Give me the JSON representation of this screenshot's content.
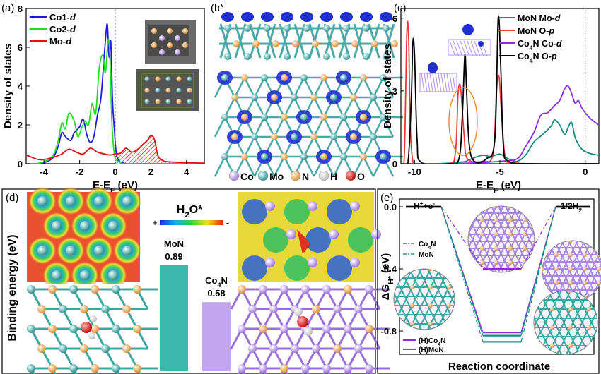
{
  "panels": {
    "a": "(a)",
    "b": "(b)",
    "c": "(c)",
    "d": "(d)",
    "e": "(e)"
  },
  "chart_data": [
    {
      "id": "a",
      "type": "line",
      "xlabel": "E-E_F (eV)",
      "ylabel": "Density of states",
      "xlim": [
        -5,
        5
      ],
      "ylim": [
        0,
        8
      ],
      "xticks": [
        -4,
        -2,
        0,
        2,
        4
      ],
      "yticks": [
        0,
        2,
        4,
        6,
        8
      ],
      "legend_placement": "top-left",
      "series": [
        {
          "name": "Co1-d",
          "color": "#1a1ae6",
          "x": [
            -5,
            -4.5,
            -4,
            -3.5,
            -3.2,
            -3,
            -2.8,
            -2.5,
            -2.3,
            -2,
            -1.8,
            -1.6,
            -1.4,
            -1.2,
            -1.0,
            -0.8,
            -0.6,
            -0.45,
            -0.35,
            -0.25,
            -0.15,
            -0.05,
            0.05,
            0.2,
            0.4,
            0.6,
            0.8,
            1.0,
            1.5,
            2,
            2.5,
            3,
            3.5,
            4,
            5
          ],
          "y": [
            0,
            0,
            0.05,
            0.3,
            0.9,
            1.6,
            1.4,
            1.2,
            1.6,
            1.9,
            2.3,
            1.5,
            1.1,
            1.4,
            2.5,
            3.4,
            5.8,
            7.2,
            5.5,
            6.3,
            3.2,
            1.8,
            0.6,
            0.15,
            0.05,
            0,
            0,
            0,
            0,
            0,
            0,
            0,
            0,
            0,
            0
          ]
        },
        {
          "name": "Co2-d",
          "color": "#22dd22",
          "x": [
            -5,
            -4.5,
            -4,
            -3.5,
            -3.2,
            -3,
            -2.8,
            -2.6,
            -2.3,
            -2.1,
            -1.9,
            -1.7,
            -1.5,
            -1.3,
            -1.1,
            -0.9,
            -0.7,
            -0.55,
            -0.4,
            -0.3,
            -0.2,
            -0.1,
            0,
            0.2,
            0.4,
            0.7,
            1,
            1.5,
            2,
            2.5,
            3,
            3.5,
            4,
            5
          ],
          "y": [
            0,
            0,
            0.1,
            0.4,
            1.2,
            2.1,
            1.8,
            2.6,
            2.2,
            1.4,
            1.8,
            2.2,
            2.0,
            3.1,
            2.6,
            4.9,
            5.6,
            4.7,
            6.4,
            5.5,
            2.4,
            0.9,
            0.3,
            0.1,
            0,
            0,
            0,
            0,
            0,
            0,
            0,
            0,
            0,
            0
          ]
        },
        {
          "name": "Mo-d",
          "color": "#e01010",
          "x": [
            -5,
            -4.6,
            -4.2,
            -3.8,
            -3.4,
            -3.0,
            -2.6,
            -2.2,
            -1.8,
            -1.4,
            -1.0,
            -0.6,
            -0.3,
            0,
            0.3,
            0.6,
            0.9,
            1.2,
            1.5,
            1.8,
            2.0,
            2.2,
            2.4,
            2.7,
            3.0,
            3.4,
            3.8,
            4.2,
            4.6,
            5
          ],
          "y": [
            0.45,
            0.3,
            0.2,
            0.25,
            0.35,
            0.5,
            0.75,
            0.6,
            0.5,
            0.8,
            0.6,
            0.5,
            0.45,
            0.5,
            0.55,
            0.8,
            0.6,
            0.7,
            0.95,
            1.2,
            1.45,
            1.25,
            0.4,
            0.15,
            0.1,
            0.08,
            0.06,
            0.05,
            0.04,
            0.03
          ]
        }
      ]
    },
    {
      "id": "c",
      "type": "line",
      "xlabel": "E-E_F (eV)",
      "ylabel": "Density of states",
      "xlim": [
        -10.8,
        0.8
      ],
      "ylim": [
        0,
        6.4
      ],
      "xticks": [
        -10,
        -5,
        0
      ],
      "yticks": [
        0,
        3,
        6
      ],
      "legend_placement": "top-right",
      "series": [
        {
          "name": "MoN Mo-d",
          "color": "#1a8a80",
          "x": [
            -10.8,
            -10,
            -9,
            -8,
            -7.5,
            -7,
            -6.5,
            -6,
            -5.5,
            -5,
            -4.5,
            -4,
            -3.5,
            -3,
            -2.5,
            -2,
            -1.8,
            -1.5,
            -1.2,
            -1,
            -0.8,
            -0.6,
            -0.4,
            -0.2,
            0,
            0.4,
            0.8
          ],
          "y": [
            0,
            0,
            0,
            0.02,
            0.05,
            0.1,
            0.25,
            0.35,
            0.3,
            0.4,
            0.2,
            0.1,
            0.35,
            0.9,
            1.2,
            1.55,
            1.8,
            1.6,
            1.2,
            1.5,
            1.7,
            1.1,
            0.8,
            0.6,
            0.5,
            0.4,
            0.35
          ]
        },
        {
          "name": "MoN O-p",
          "color": "#e83a3a",
          "x": [
            -10.8,
            -10.6,
            -10.45,
            -10.35,
            -10.25,
            -10.1,
            -9.9,
            -8,
            -7.6,
            -7.45,
            -7.3,
            -7.1,
            -6.9,
            -6,
            -5.4,
            -5.2,
            -5.05,
            -4.9,
            -4.7,
            -4.4,
            -3,
            0,
            0.8
          ],
          "y": [
            0,
            0.3,
            5.4,
            5.2,
            1.5,
            0.1,
            0,
            0,
            0.5,
            2.9,
            3.1,
            1.2,
            0.2,
            0.1,
            0.4,
            3.0,
            3.6,
            2.0,
            0.3,
            0.05,
            0,
            0,
            0
          ]
        },
        {
          "name": "Co4N Co-d",
          "color": "#8a2be2",
          "x": [
            -10.8,
            -8,
            -6,
            -5,
            -4,
            -3.5,
            -3,
            -2.6,
            -2.2,
            -1.8,
            -1.5,
            -1.2,
            -1.0,
            -0.8,
            -0.6,
            -0.4,
            -0.2,
            0,
            0.4,
            0.8
          ],
          "y": [
            0,
            0,
            0.05,
            0.1,
            0.2,
            0.7,
            1.3,
            2.0,
            2.1,
            2.4,
            2.6,
            3.1,
            3.2,
            2.9,
            2.5,
            2.6,
            2.3,
            2.1,
            1.8,
            1.6
          ]
        },
        {
          "name": "Co4N O-p",
          "color": "#000000",
          "x": [
            -10.8,
            -10.4,
            -10.2,
            -10.1,
            -10.0,
            -9.85,
            -9.6,
            -8,
            -7.4,
            -7.2,
            -7.05,
            -6.95,
            -6.8,
            -6.5,
            -5.8,
            -5.3,
            -5.1,
            -4.95,
            -4.8,
            -4.5,
            -3,
            0,
            0.8
          ],
          "y": [
            0,
            0,
            2.5,
            5.0,
            4.5,
            1.0,
            0.05,
            0,
            0.2,
            2.0,
            4.5,
            3.0,
            0.8,
            0.1,
            0.2,
            1.0,
            6.0,
            4.0,
            0.8,
            0.1,
            0,
            0,
            0
          ]
        }
      ]
    },
    {
      "id": "d",
      "type": "bar",
      "ylabel": "Binding energy (eV)",
      "categories": [
        "MoN",
        "Co4N"
      ],
      "values": [
        0.89,
        0.58
      ],
      "value_labels": [
        "0.89",
        "0.58"
      ],
      "colors": [
        "#3cb8ad",
        "#c2a5ef"
      ],
      "annotation": "H2O*",
      "scale_plus": "+",
      "scale_minus": "-"
    },
    {
      "id": "e",
      "type": "line",
      "xlabel": "Reaction coordinate",
      "ylabel": "ΔG_H* (eV)",
      "ylim": [
        -0.95,
        0.05
      ],
      "yticks": [
        "0.0",
        "-0.4",
        "-0.8"
      ],
      "step_labels": [
        "H+ + e-",
        "1/2H2"
      ],
      "legend_top": [
        "Co4N",
        "MoN"
      ],
      "legend_bottom": [
        "(H)Co4N",
        "(H)MoN"
      ],
      "series": [
        {
          "name": "Co4N",
          "color": "#8a2be2",
          "dash": true,
          "values": [
            0,
            -0.4,
            0
          ]
        },
        {
          "name": "MoN",
          "color": "#1a8a80",
          "dash": true,
          "values": [
            0,
            -0.87,
            0
          ]
        },
        {
          "name": "(H)Co4N",
          "color": "#8a2be2",
          "dash": false,
          "values": [
            0,
            -0.81,
            0
          ]
        },
        {
          "name": "(H)MoN",
          "color": "#1a8a80",
          "dash": false,
          "values": [
            0,
            -0.83,
            0
          ]
        }
      ]
    }
  ],
  "legend_b": {
    "items": [
      {
        "label": "Co",
        "color": "#b08ae0"
      },
      {
        "label": "Mo",
        "color": "#3aa8a0"
      },
      {
        "label": "N",
        "color": "#e8a050"
      },
      {
        "label": "H",
        "color": "#f0f0f0"
      },
      {
        "label": "O",
        "color": "#e01010"
      }
    ]
  }
}
